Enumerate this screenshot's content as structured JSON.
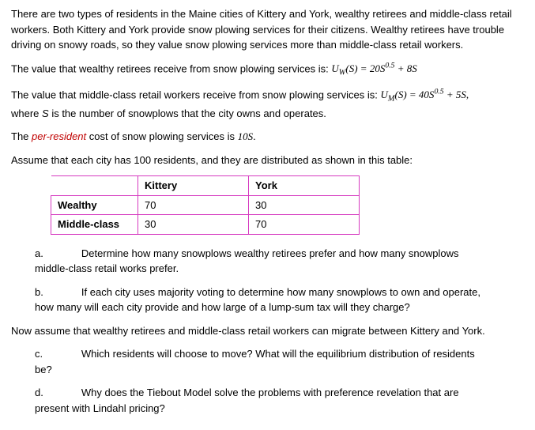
{
  "para1": "There are two types of residents in the Maine cities of Kittery and York, wealthy retirees and middle-class retail workers. Both Kittery and York provide snow plowing services for their citizens. Wealthy retirees have trouble driving on snowy roads, so they value snow plowing services more than middle-class retail workers.",
  "para2_pre": "The value that wealthy retirees receive from snow plowing services is: ",
  "para2_formula_lhs": "U",
  "para2_sub_w": "W",
  "para2_arg": "(S) = 20S",
  "para2_exp": "0.5",
  "para2_tail": " + 8S",
  "para3_pre": "The value that middle-class retail workers receive from snow plowing services is: ",
  "para3_formula_lhs": "U",
  "para3_sub_m": "M",
  "para3_arg": "(S) = 40S",
  "para3_exp": "0.5",
  "para3_tail": " + 5S,",
  "para3_where_pre": "where ",
  "para3_where_s": "S",
  "para3_where_post": " is the number of snowplows that the city owns and operates.",
  "para4_pre": "The ",
  "para4_red": "per-resident",
  "para4_mid": " cost of snow plowing services is ",
  "para4_cost": "10S",
  "para4_dot": ".",
  "para5": "Assume that each city has 100 residents, and they are distributed as shown in this table:",
  "table": {
    "col1": "Kittery",
    "col2": "York",
    "row1_head": "Wealthy",
    "row1_c1": "70",
    "row1_c2": "30",
    "row2_head": "Middle-class",
    "row2_c1": "30",
    "row2_c2": "70"
  },
  "q_a_letter": "a.",
  "q_a_line1": "Determine how many snowplows wealthy retirees prefer and how many snowplows",
  "q_a_line2": "middle-class retail works prefer.",
  "q_b_letter": "b.",
  "q_b_line1": "If each city uses majority voting to determine how many snowplows to own and operate,",
  "q_b_line2": "how many will each city provide and how large of a lump-sum tax will they charge?",
  "now_assume": "Now assume that wealthy retirees and middle-class retail workers can migrate between Kittery and York.",
  "q_c_letter": "c.",
  "q_c_line1": "Which residents will choose to move? What will the equilibrium distribution of residents",
  "q_c_line2": "be?",
  "q_d_letter": "d.",
  "q_d_line1": "Why does the Tiebout Model solve the problems with preference revelation that are",
  "q_d_line2": "present with Lindahl pricing?"
}
